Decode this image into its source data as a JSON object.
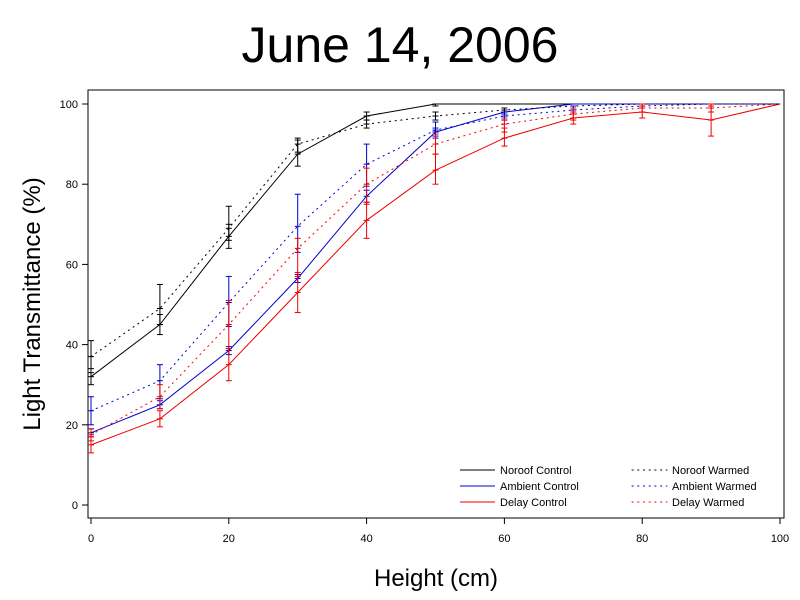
{
  "chart_data": {
    "type": "line",
    "title": "June 14, 2006",
    "xlabel": "Height (cm)",
    "ylabel": "Light Transmittance (%)",
    "xlim": [
      0,
      100
    ],
    "ylim": [
      0,
      100
    ],
    "xticks": [
      0,
      20,
      40,
      60,
      80,
      100
    ],
    "yticks": [
      0,
      20,
      40,
      60,
      80,
      100
    ],
    "grid": false,
    "legend_position": "bottom-right",
    "series": [
      {
        "name": "Noroof Control",
        "color": "#000000",
        "dash": "solid",
        "points": [
          {
            "x": 0,
            "y": 32,
            "lo": 30,
            "hi": 34
          },
          {
            "x": 10,
            "y": 45,
            "lo": 42.5,
            "hi": 47.5
          },
          {
            "x": 20,
            "y": 67,
            "lo": 64,
            "hi": 70
          },
          {
            "x": 30,
            "y": 87.5,
            "lo": 84.5,
            "hi": 91
          },
          {
            "x": 40,
            "y": 97,
            "lo": 96,
            "hi": 98
          },
          {
            "x": 50,
            "y": 100,
            "lo": 99.5,
            "hi": 100
          },
          {
            "x": 60,
            "y": 100
          },
          {
            "x": 70,
            "y": 100
          },
          {
            "x": 80,
            "y": 100
          },
          {
            "x": 90,
            "y": 100
          },
          {
            "x": 100,
            "y": 100
          }
        ]
      },
      {
        "name": "Ambient Control",
        "color": "#0000cc",
        "dash": "solid",
        "points": [
          {
            "x": 0,
            "y": 18,
            "lo": 17,
            "hi": 19
          },
          {
            "x": 10,
            "y": 25,
            "lo": 24,
            "hi": 26
          },
          {
            "x": 20,
            "y": 38.5,
            "lo": 37.5,
            "hi": 39.5
          },
          {
            "x": 30,
            "y": 56.5,
            "lo": 55.5,
            "hi": 57.5
          },
          {
            "x": 40,
            "y": 77,
            "lo": 75.5,
            "hi": 78.5
          },
          {
            "x": 50,
            "y": 93,
            "lo": 92,
            "hi": 94
          },
          {
            "x": 60,
            "y": 98,
            "lo": 97.5,
            "hi": 98.5
          },
          {
            "x": 70,
            "y": 100
          },
          {
            "x": 80,
            "y": 100
          },
          {
            "x": 90,
            "y": 100
          },
          {
            "x": 100,
            "y": 100
          }
        ]
      },
      {
        "name": "Delay Control",
        "color": "#ee0000",
        "dash": "solid",
        "points": [
          {
            "x": 0,
            "y": 15,
            "lo": 13,
            "hi": 17
          },
          {
            "x": 10,
            "y": 21.5,
            "lo": 19.5,
            "hi": 23.5
          },
          {
            "x": 20,
            "y": 35,
            "lo": 31,
            "hi": 39
          },
          {
            "x": 30,
            "y": 53,
            "lo": 48,
            "hi": 58
          },
          {
            "x": 40,
            "y": 71,
            "lo": 66.5,
            "hi": 75.5
          },
          {
            "x": 50,
            "y": 83.5,
            "lo": 80,
            "hi": 87.5
          },
          {
            "x": 60,
            "y": 91.5,
            "lo": 89.5,
            "hi": 94
          },
          {
            "x": 70,
            "y": 96.5,
            "lo": 95,
            "hi": 98
          },
          {
            "x": 80,
            "y": 98,
            "lo": 96.5,
            "hi": 99.5
          },
          {
            "x": 90,
            "y": 96,
            "lo": 92,
            "hi": 99.5
          },
          {
            "x": 100,
            "y": 100
          }
        ]
      },
      {
        "name": "Noroof Warmed",
        "color": "#000000",
        "dash": "dotted",
        "points": [
          {
            "x": 0,
            "y": 37,
            "lo": 33,
            "hi": 41
          },
          {
            "x": 10,
            "y": 49,
            "lo": 45,
            "hi": 55
          },
          {
            "x": 20,
            "y": 69,
            "lo": 66,
            "hi": 74.5
          },
          {
            "x": 30,
            "y": 90,
            "lo": 88,
            "hi": 91.5
          },
          {
            "x": 40,
            "y": 95,
            "lo": 94,
            "hi": 96
          },
          {
            "x": 50,
            "y": 97,
            "lo": 96,
            "hi": 98
          },
          {
            "x": 60,
            "y": 98.5,
            "lo": 98,
            "hi": 99
          },
          {
            "x": 70,
            "y": 99.5
          },
          {
            "x": 80,
            "y": 100
          },
          {
            "x": 90,
            "y": 100
          },
          {
            "x": 100,
            "y": 100
          }
        ]
      },
      {
        "name": "Ambient Warmed",
        "color": "#0000cc",
        "dash": "dotted",
        "points": [
          {
            "x": 0,
            "y": 23.5,
            "lo": 20,
            "hi": 27
          },
          {
            "x": 10,
            "y": 31,
            "lo": 26.5,
            "hi": 35
          },
          {
            "x": 20,
            "y": 50.5,
            "lo": 44.5,
            "hi": 57
          },
          {
            "x": 30,
            "y": 69.5,
            "lo": 63,
            "hi": 77.5
          },
          {
            "x": 40,
            "y": 85,
            "lo": 79.5,
            "hi": 90
          },
          {
            "x": 50,
            "y": 93.5,
            "lo": 91.5,
            "hi": 95.5
          },
          {
            "x": 60,
            "y": 97,
            "lo": 96,
            "hi": 98
          },
          {
            "x": 70,
            "y": 98.5,
            "lo": 97.5,
            "hi": 99.5
          },
          {
            "x": 80,
            "y": 99.5
          },
          {
            "x": 90,
            "y": 100
          },
          {
            "x": 100,
            "y": 100
          }
        ]
      },
      {
        "name": "Delay Warmed",
        "color": "#ee0000",
        "dash": "dotted",
        "points": [
          {
            "x": 0,
            "y": 17.5,
            "lo": 16,
            "hi": 19
          },
          {
            "x": 10,
            "y": 27,
            "lo": 24,
            "hi": 30
          },
          {
            "x": 20,
            "y": 45,
            "lo": 39,
            "hi": 51
          },
          {
            "x": 30,
            "y": 64,
            "lo": 57,
            "hi": 66.5
          },
          {
            "x": 40,
            "y": 80,
            "lo": 75,
            "hi": 84
          },
          {
            "x": 50,
            "y": 90,
            "lo": 87.5,
            "hi": 92.5
          },
          {
            "x": 60,
            "y": 95,
            "lo": 93,
            "hi": 96.5
          },
          {
            "x": 70,
            "y": 97.5,
            "lo": 96,
            "hi": 99
          },
          {
            "x": 80,
            "y": 99,
            "lo": 98,
            "hi": 100
          },
          {
            "x": 90,
            "y": 99,
            "lo": 98,
            "hi": 100
          },
          {
            "x": 100,
            "y": 100
          }
        ]
      }
    ]
  }
}
